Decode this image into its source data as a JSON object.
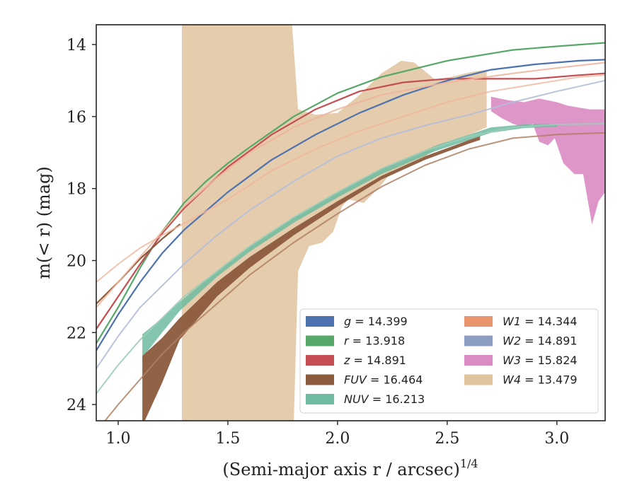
{
  "chart_data": {
    "type": "area",
    "xlabel": "(Semi-major axis r / arcsec)",
    "xlabel_sup": "1/4",
    "ylabel": "m(< r) (mag)",
    "xlim": [
      0.9,
      3.22
    ],
    "ylim": [
      24.45,
      13.45
    ],
    "y_inverted": true,
    "x_ticks": [
      1.0,
      1.5,
      2.0,
      2.5,
      3.0
    ],
    "x_tick_labels": [
      "1.0",
      "1.5",
      "2.0",
      "2.5",
      "3.0"
    ],
    "y_ticks": [
      14,
      16,
      18,
      20,
      22,
      24
    ],
    "y_tick_labels": [
      "14",
      "16",
      "18",
      "20",
      "22",
      "24"
    ],
    "grid": false,
    "legend_position": "lower-right",
    "legend": [
      {
        "band": "g",
        "sep": " = ",
        "value": "14.399",
        "color": "#4c72b0"
      },
      {
        "band": "W1",
        "sep": " = ",
        "value": "14.344",
        "color": "#e8956d"
      },
      {
        "band": "r",
        "sep": " = ",
        "value": "13.918",
        "color": "#55a868"
      },
      {
        "band": "W2",
        "sep": " = ",
        "value": "14.891",
        "color": "#8c9dc4"
      },
      {
        "band": "z",
        "sep": " = ",
        "value": "14.891",
        "color": "#c44e52"
      },
      {
        "band": "W3",
        "sep": " = ",
        "value": "15.824",
        "color": "#da8bc3"
      },
      {
        "band": "FUV",
        "sep": " = ",
        "value": "16.464",
        "color": "#8c5a3c"
      },
      {
        "band": "W4",
        "sep": " = ",
        "value": "13.479",
        "color": "#dfc39d"
      },
      {
        "band": "NUV",
        "sep": " = ",
        "value": "16.213",
        "color": "#6fbba0"
      }
    ],
    "bands": [
      {
        "name": "W4",
        "color": "#dfc39d",
        "alpha": 0.85,
        "upper": [
          [
            1.29,
            13.2
          ],
          [
            1.79,
            13.2
          ],
          [
            1.82,
            15.8
          ],
          [
            1.9,
            15.95
          ],
          [
            2.0,
            15.9
          ],
          [
            2.1,
            15.4
          ],
          [
            2.2,
            14.8
          ],
          [
            2.29,
            14.45
          ],
          [
            2.35,
            14.5
          ],
          [
            2.45,
            15.0
          ],
          [
            2.55,
            14.85
          ],
          [
            2.62,
            14.75
          ],
          [
            2.68,
            14.7
          ]
        ],
        "lower": [
          [
            2.68,
            16.3
          ],
          [
            2.6,
            16.5
          ],
          [
            2.5,
            16.7
          ],
          [
            2.4,
            17.1
          ],
          [
            2.33,
            17.3
          ],
          [
            2.25,
            17.5
          ],
          [
            2.2,
            17.9
          ],
          [
            2.12,
            18.4
          ],
          [
            2.05,
            18.3
          ],
          [
            2.02,
            18.5
          ],
          [
            1.98,
            19.2
          ],
          [
            1.93,
            19.5
          ],
          [
            1.87,
            19.6
          ],
          [
            1.82,
            20.3
          ],
          [
            1.8,
            24.6
          ],
          [
            1.29,
            24.6
          ]
        ]
      },
      {
        "name": "W3",
        "color": "#da8bc3",
        "alpha": 0.9,
        "upper": [
          [
            2.7,
            15.45
          ],
          [
            2.78,
            15.55
          ],
          [
            2.85,
            15.6
          ],
          [
            2.92,
            15.5
          ],
          [
            3.0,
            15.6
          ],
          [
            3.05,
            15.7
          ],
          [
            3.1,
            15.75
          ],
          [
            3.15,
            15.8
          ],
          [
            3.22,
            15.8
          ]
        ],
        "lower": [
          [
            3.22,
            18.1
          ],
          [
            3.19,
            18.35
          ],
          [
            3.16,
            19.0
          ],
          [
            3.12,
            17.6
          ],
          [
            3.08,
            17.6
          ],
          [
            3.03,
            17.3
          ],
          [
            2.99,
            16.6
          ],
          [
            2.96,
            16.8
          ],
          [
            2.92,
            16.7
          ],
          [
            2.89,
            16.2
          ],
          [
            2.85,
            16.3
          ],
          [
            2.8,
            16.2
          ],
          [
            2.75,
            16.05
          ],
          [
            2.7,
            15.85
          ]
        ]
      },
      {
        "name": "NUV",
        "color": "#6fbba0",
        "alpha": 0.85,
        "upper": [
          [
            1.11,
            22.05
          ],
          [
            1.2,
            21.6
          ],
          [
            1.28,
            21.15
          ],
          [
            1.45,
            20.3
          ],
          [
            1.6,
            19.6
          ],
          [
            1.8,
            18.8
          ],
          [
            2.0,
            18.1
          ],
          [
            2.2,
            17.45
          ],
          [
            2.45,
            16.8
          ],
          [
            2.7,
            16.3
          ],
          [
            2.85,
            16.22
          ],
          [
            3.0,
            16.2
          ]
        ],
        "lower": [
          [
            3.0,
            16.28
          ],
          [
            2.85,
            16.32
          ],
          [
            2.7,
            16.45
          ],
          [
            2.45,
            16.95
          ],
          [
            2.2,
            17.6
          ],
          [
            2.0,
            18.25
          ],
          [
            1.8,
            18.95
          ],
          [
            1.6,
            19.75
          ],
          [
            1.45,
            20.45
          ],
          [
            1.28,
            21.4
          ],
          [
            1.2,
            22.0
          ],
          [
            1.11,
            22.7
          ]
        ]
      },
      {
        "name": "FUV",
        "color": "#8c5a3c",
        "alpha": 0.95,
        "upper": [
          [
            1.11,
            22.65
          ],
          [
            1.2,
            22.15
          ],
          [
            1.28,
            21.6
          ],
          [
            1.45,
            20.6
          ],
          [
            1.6,
            19.9
          ],
          [
            1.8,
            19.1
          ],
          [
            2.0,
            18.35
          ],
          [
            2.2,
            17.65
          ],
          [
            2.4,
            17.1
          ],
          [
            2.6,
            16.65
          ],
          [
            2.65,
            16.55
          ]
        ],
        "lower": [
          [
            2.65,
            16.65
          ],
          [
            2.6,
            16.75
          ],
          [
            2.4,
            17.2
          ],
          [
            2.2,
            17.75
          ],
          [
            2.0,
            18.5
          ],
          [
            1.8,
            19.3
          ],
          [
            1.6,
            20.2
          ],
          [
            1.45,
            21.0
          ],
          [
            1.28,
            22.2
          ],
          [
            1.2,
            23.4
          ],
          [
            1.11,
            24.6
          ]
        ]
      }
    ],
    "series": [
      {
        "name": "r",
        "color": "#55a868",
        "width": 2.2,
        "opacity": 1,
        "points": [
          [
            0.9,
            22.3
          ],
          [
            1.0,
            21.3
          ],
          [
            1.1,
            20.2
          ],
          [
            1.2,
            19.2
          ],
          [
            1.3,
            18.4
          ],
          [
            1.4,
            17.8
          ],
          [
            1.5,
            17.3
          ],
          [
            1.6,
            16.85
          ],
          [
            1.8,
            16.0
          ],
          [
            2.0,
            15.35
          ],
          [
            2.2,
            14.9
          ],
          [
            2.5,
            14.45
          ],
          [
            2.8,
            14.15
          ],
          [
            3.0,
            14.05
          ],
          [
            3.22,
            13.95
          ]
        ]
      },
      {
        "name": "z",
        "color": "#c44e52",
        "width": 2.2,
        "opacity": 1,
        "points": [
          [
            0.9,
            21.9
          ],
          [
            1.0,
            21.0
          ],
          [
            1.1,
            20.1
          ],
          [
            1.2,
            19.25
          ],
          [
            1.3,
            18.55
          ],
          [
            1.5,
            17.4
          ],
          [
            1.7,
            16.5
          ],
          [
            1.9,
            15.8
          ],
          [
            2.1,
            15.3
          ],
          [
            2.3,
            15.05
          ],
          [
            2.5,
            14.95
          ],
          [
            2.7,
            14.95
          ],
          [
            2.9,
            14.95
          ],
          [
            3.1,
            14.85
          ],
          [
            3.22,
            14.8
          ]
        ]
      },
      {
        "name": "g",
        "color": "#4c72b0",
        "width": 2.2,
        "opacity": 1,
        "points": [
          [
            0.9,
            22.5
          ],
          [
            1.0,
            21.5
          ],
          [
            1.1,
            20.6
          ],
          [
            1.2,
            19.8
          ],
          [
            1.3,
            19.15
          ],
          [
            1.5,
            18.1
          ],
          [
            1.7,
            17.2
          ],
          [
            1.9,
            16.5
          ],
          [
            2.1,
            15.9
          ],
          [
            2.3,
            15.4
          ],
          [
            2.5,
            15.0
          ],
          [
            2.7,
            14.7
          ],
          [
            2.9,
            14.55
          ],
          [
            3.1,
            14.45
          ],
          [
            3.22,
            14.42
          ]
        ]
      },
      {
        "name": "FUV",
        "color": "#8c5a3c",
        "width": 2.2,
        "opacity": 1,
        "points": [
          [
            0.9,
            21.2
          ],
          [
            1.0,
            20.6
          ],
          [
            1.1,
            19.95
          ],
          [
            1.2,
            19.4
          ],
          [
            1.28,
            19.0
          ]
        ]
      },
      {
        "name": "FUV",
        "color": "#b07f64",
        "width": 2.0,
        "opacity": 0.85,
        "points": [
          [
            0.92,
            24.6
          ],
          [
            1.0,
            24.0
          ],
          [
            1.1,
            23.3
          ],
          [
            1.2,
            22.6
          ],
          [
            1.3,
            22.0
          ],
          [
            1.45,
            21.2
          ],
          [
            1.6,
            20.4
          ],
          [
            1.8,
            19.5
          ],
          [
            2.0,
            18.7
          ],
          [
            2.2,
            17.95
          ],
          [
            2.4,
            17.35
          ],
          [
            2.6,
            16.9
          ],
          [
            2.8,
            16.6
          ],
          [
            3.0,
            16.5
          ],
          [
            3.22,
            16.45
          ]
        ]
      },
      {
        "name": "NUV",
        "color": "#9ccdb9",
        "width": 2.0,
        "opacity": 0.9,
        "points": [
          [
            0.9,
            23.7
          ],
          [
            1.0,
            22.9
          ],
          [
            1.1,
            22.2
          ],
          [
            1.2,
            21.6
          ],
          [
            1.3,
            21.0
          ],
          [
            1.45,
            20.3
          ],
          [
            1.6,
            19.6
          ],
          [
            1.8,
            18.8
          ],
          [
            2.0,
            18.1
          ],
          [
            2.2,
            17.45
          ],
          [
            2.4,
            16.95
          ],
          [
            2.6,
            16.55
          ],
          [
            2.8,
            16.3
          ],
          [
            3.0,
            16.22
          ],
          [
            3.22,
            16.2
          ]
        ]
      },
      {
        "name": "W1",
        "color": "#f0b49c",
        "width": 2.0,
        "opacity": 0.9,
        "points": [
          [
            0.9,
            21.3
          ],
          [
            1.0,
            20.6
          ],
          [
            1.1,
            19.9
          ],
          [
            1.2,
            19.2
          ],
          [
            1.3,
            18.5
          ],
          [
            1.45,
            17.7
          ],
          [
            1.6,
            17.0
          ],
          [
            1.8,
            16.3
          ],
          [
            2.0,
            15.8
          ],
          [
            2.2,
            15.4
          ],
          [
            2.5,
            15.05
          ],
          [
            2.8,
            14.8
          ],
          [
            3.0,
            14.65
          ],
          [
            3.22,
            14.5
          ]
        ]
      },
      {
        "name": "W1",
        "color": "#f0b49c",
        "width": 2.0,
        "opacity": 0.8,
        "points": [
          [
            0.9,
            20.6
          ],
          [
            1.0,
            20.1
          ],
          [
            1.1,
            19.65
          ],
          [
            1.2,
            19.3
          ],
          [
            1.35,
            18.8
          ],
          [
            1.5,
            18.3
          ],
          [
            1.7,
            17.5
          ],
          [
            1.9,
            16.9
          ],
          [
            2.1,
            16.4
          ],
          [
            2.3,
            16.0
          ],
          [
            2.5,
            15.6
          ],
          [
            2.7,
            15.3
          ],
          [
            2.9,
            15.1
          ],
          [
            3.1,
            14.9
          ],
          [
            3.22,
            14.85
          ]
        ]
      },
      {
        "name": "W2",
        "color": "#b3bedb",
        "width": 2.0,
        "opacity": 0.9,
        "points": [
          [
            0.9,
            23.0
          ],
          [
            1.0,
            22.1
          ],
          [
            1.1,
            21.3
          ],
          [
            1.2,
            20.7
          ],
          [
            1.3,
            20.1
          ],
          [
            1.45,
            19.3
          ],
          [
            1.6,
            18.6
          ],
          [
            1.8,
            17.8
          ],
          [
            2.0,
            17.1
          ],
          [
            2.2,
            16.6
          ],
          [
            2.4,
            16.25
          ],
          [
            2.6,
            15.95
          ],
          [
            2.8,
            15.6
          ],
          [
            3.0,
            15.3
          ],
          [
            3.22,
            15.0
          ]
        ]
      }
    ]
  }
}
